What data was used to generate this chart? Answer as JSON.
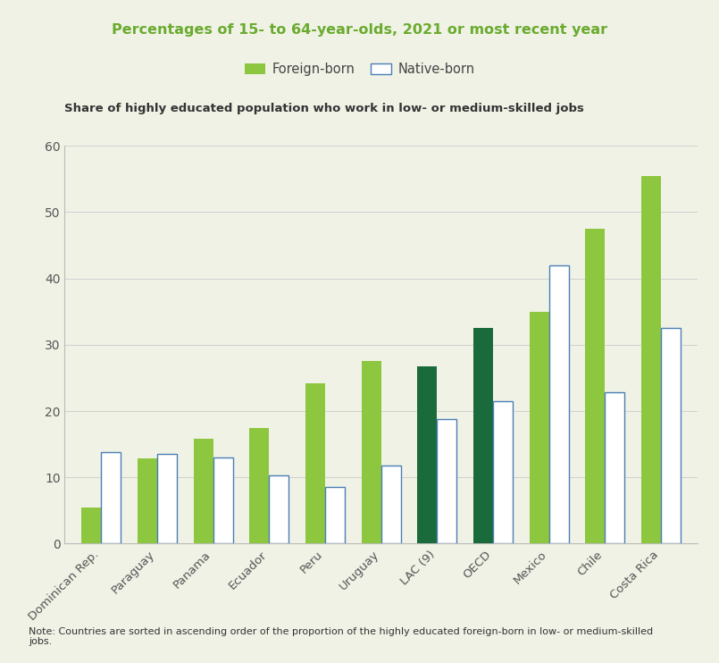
{
  "title": "Percentages of 15- to 64-year-olds, 2021 or most recent year",
  "subtitle": "Share of highly educated population who work in low- or medium-skilled jobs",
  "note": "Note: Countries are sorted in ascending order of the proportion of the highly educated foreign-born in low- or medium-skilled\njobs.",
  "categories": [
    "Dominican Rep.",
    "Paraguay",
    "Panama",
    "Ecuador",
    "Peru",
    "Uruguay",
    "LAC (9)",
    "OECD",
    "Mexico",
    "Chile",
    "Costa Rica"
  ],
  "foreign_born": [
    5.5,
    12.8,
    15.8,
    17.5,
    24.2,
    27.5,
    26.8,
    32.5,
    35.0,
    47.5,
    55.5
  ],
  "native_born": [
    13.8,
    13.5,
    13.0,
    10.3,
    8.5,
    11.8,
    18.8,
    21.5,
    42.0,
    22.8,
    32.5
  ],
  "foreign_born_colors": [
    "#8dc63f",
    "#8dc63f",
    "#8dc63f",
    "#8dc63f",
    "#8dc63f",
    "#8dc63f",
    "#1a6b3c",
    "#1a6b3c",
    "#8dc63f",
    "#8dc63f",
    "#8dc63f"
  ],
  "native_born_color": "#ffffff",
  "native_born_edge_color": "#4a7fb5",
  "title_color": "#6aab2e",
  "subtitle_color": "#333333",
  "note_color": "#333333",
  "background_color": "#f0f2e6",
  "ylim": [
    0,
    60
  ],
  "yticks": [
    0,
    10,
    20,
    30,
    40,
    50,
    60
  ],
  "bar_width": 0.35
}
